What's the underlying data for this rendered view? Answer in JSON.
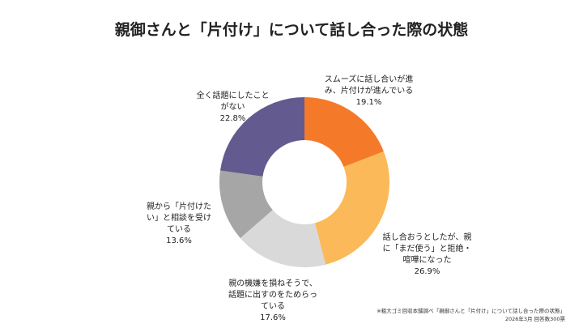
{
  "chart_data": {
    "type": "donut",
    "title": "親御さんと「片付け」について話し合った際の状態",
    "categories": [
      "スムーズに話し合いが進み、片付けが進んでいる",
      "話し合おうとしたが、親に「まだ使う」と拒絶・喧嘩になった",
      "親の機嫌を損ねそうで、話題に出すのをためらっている",
      "親から「片付けたい」と相談を受けている",
      "全く話題にしたことがない"
    ],
    "values": [
      19.1,
      26.9,
      17.6,
      13.6,
      22.8
    ],
    "value_labels": [
      "19.1%",
      "26.9%",
      "17.6%",
      "13.6%",
      "22.8%"
    ],
    "colors": [
      "#f47a2a",
      "#fbb959",
      "#d9d9d9",
      "#a6a6a6",
      "#635a8f"
    ],
    "source": [
      "※粗大ゴミ回収本舗調べ「親御さんと「片付け」について話し合った際の状態」",
      "2026年3月 回答数300票"
    ]
  }
}
